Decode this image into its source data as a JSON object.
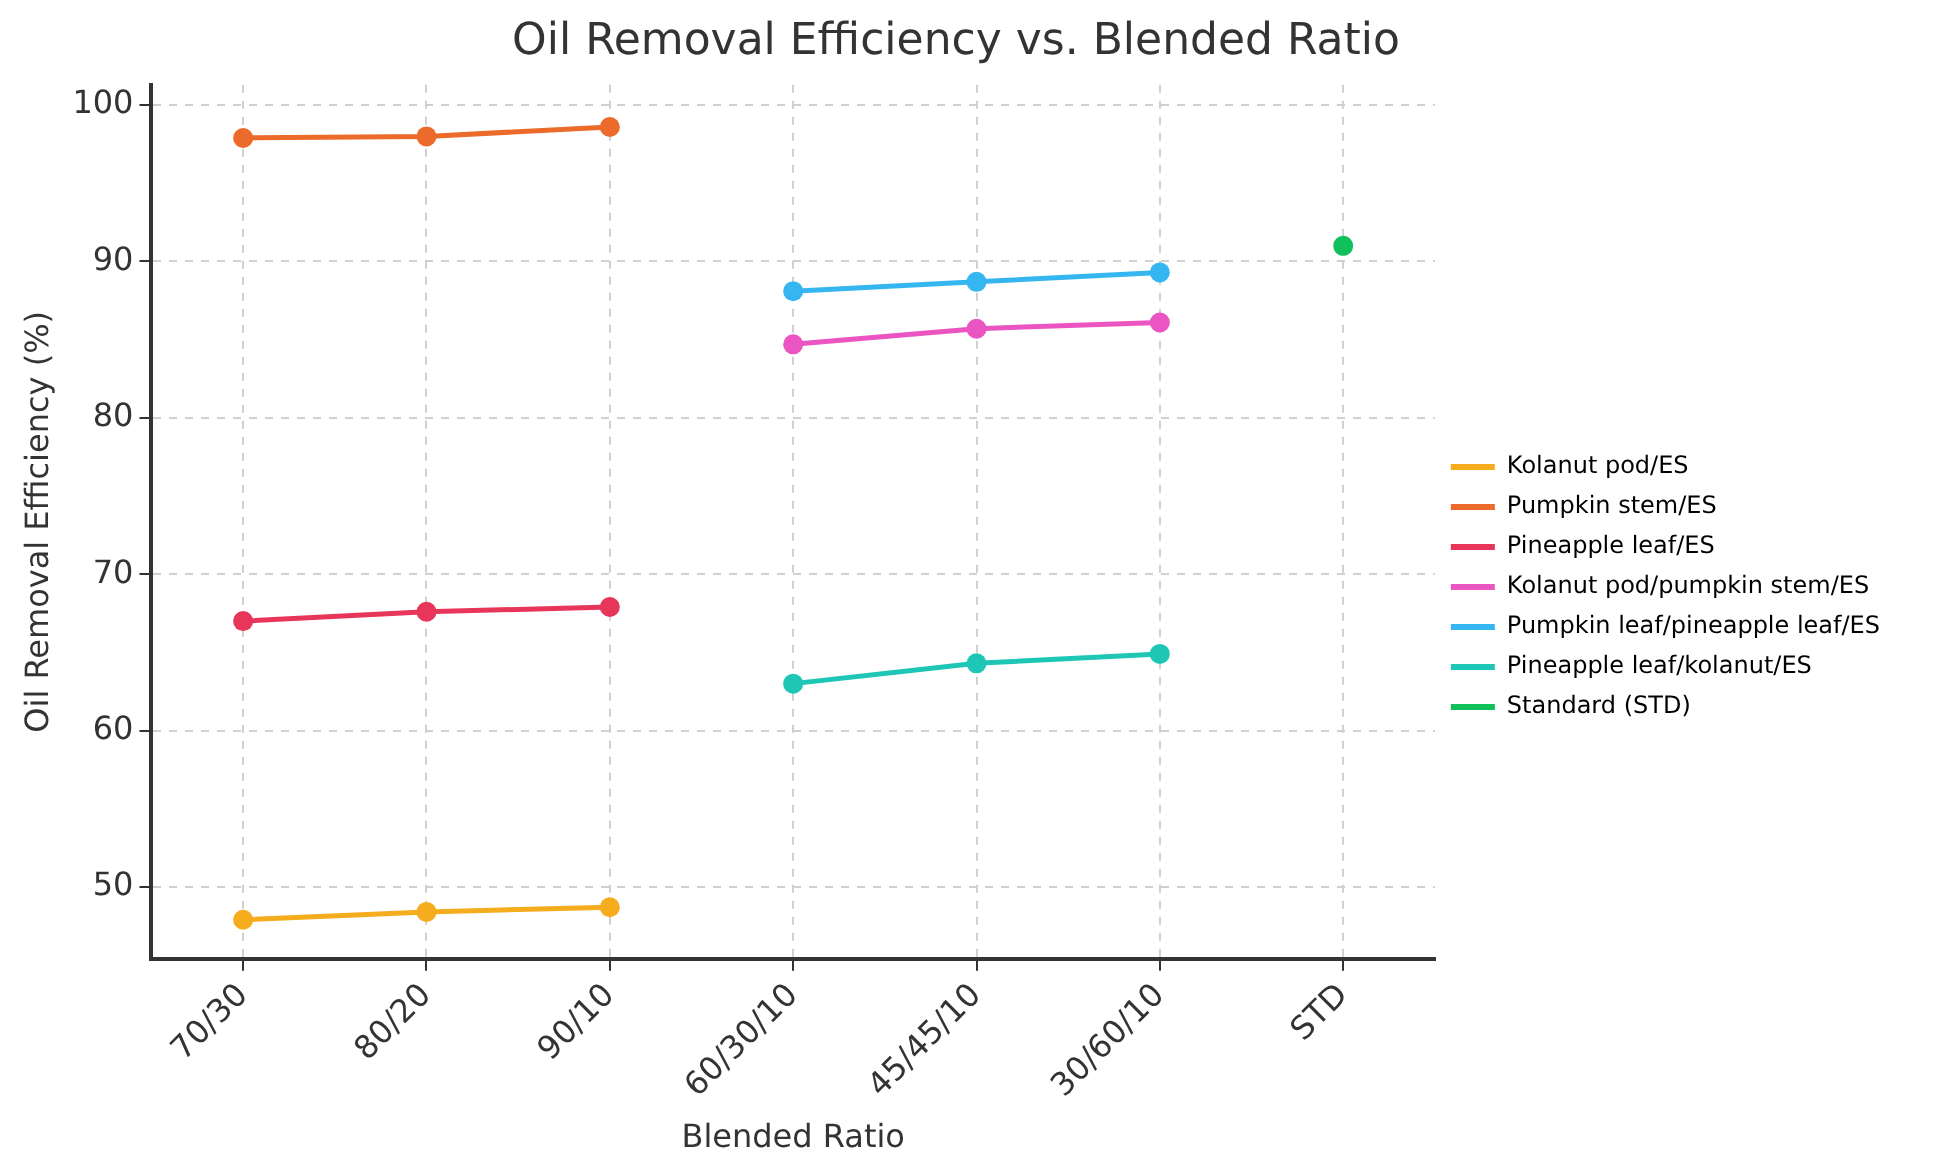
{
  "chart_data": {
    "type": "line",
    "title": "Oil Removal Efficiency vs. Blended Ratio",
    "xlabel": "Blended Ratio",
    "ylabel": "Oil Removal Efficiency (%)",
    "categories": [
      "70/30",
      "80/20",
      "90/10",
      "60/30/10",
      "45/45/10",
      "30/60/10",
      "STD"
    ],
    "series": [
      {
        "name": "Kolanut pod/ES",
        "color": "#f5ac1d",
        "values": [
          47.9,
          48.4,
          48.7,
          null,
          null,
          null,
          null
        ]
      },
      {
        "name": "Pumpkin stem/ES",
        "color": "#ec6a2a",
        "values": [
          97.9,
          98.0,
          98.6,
          null,
          null,
          null,
          null
        ]
      },
      {
        "name": "Pineapple leaf/ES",
        "color": "#e8355a",
        "values": [
          67.0,
          67.6,
          67.9,
          null,
          null,
          null,
          null
        ]
      },
      {
        "name": "Kolanut pod/pumpkin stem/ES",
        "color": "#ea55c2",
        "values": [
          null,
          null,
          null,
          84.7,
          85.7,
          86.1,
          null
        ]
      },
      {
        "name": "Pumpkin leaf/pineapple leaf/ES",
        "color": "#36b6f0",
        "values": [
          null,
          null,
          null,
          88.1,
          88.7,
          89.3,
          null
        ]
      },
      {
        "name": "Pineapple leaf/kolanut/ES",
        "color": "#1ec7b5",
        "values": [
          null,
          null,
          null,
          63.0,
          64.3,
          64.9,
          null
        ]
      },
      {
        "name": "Standard (STD)",
        "color": "#10c05a",
        "values": [
          null,
          null,
          null,
          null,
          null,
          null,
          91.0
        ]
      }
    ],
    "ylim": [
      45.4,
      101.3
    ],
    "yticks": [
      50,
      60,
      70,
      80,
      90,
      100
    ],
    "grid": true,
    "legend": "right",
    "marker": "circle",
    "line_style": "solid"
  }
}
